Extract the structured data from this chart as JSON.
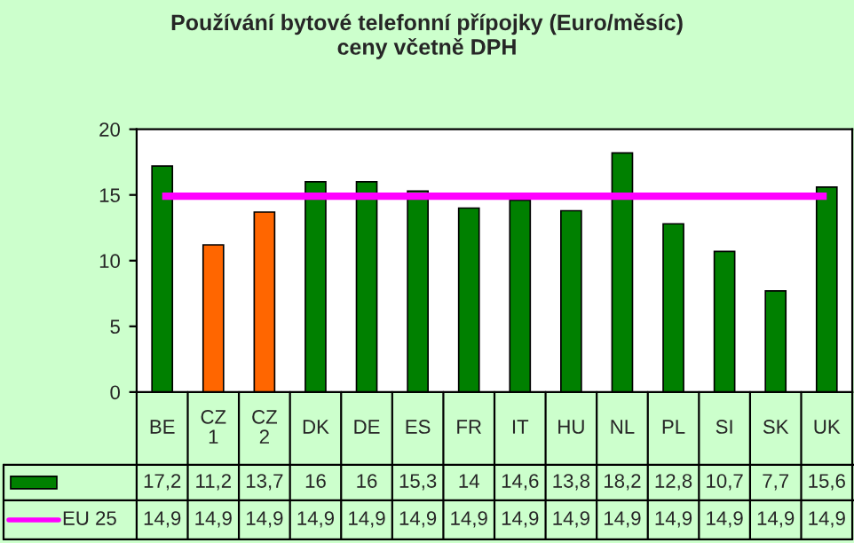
{
  "chart_data": {
    "type": "bar",
    "title": "Používání bytové telefonní přípojky (Euro/měsíc)\nceny včetně DPH",
    "categories": [
      "BE",
      "CZ 1",
      "CZ 2",
      "DK",
      "DE",
      "ES",
      "FR",
      "IT",
      "HU",
      "NL",
      "PL",
      "SI",
      "SK",
      "UK"
    ],
    "series": [
      {
        "color": "#008000",
        "colors": [
          "#008000",
          "#ff6600",
          "#ff6600",
          "#008000",
          "#008000",
          "#008000",
          "#008000",
          "#008000",
          "#008000",
          "#008000",
          "#008000",
          "#008000",
          "#008000",
          "#008000"
        ],
        "values": [
          17.2,
          11.2,
          13.7,
          16,
          16,
          15.3,
          14,
          14.6,
          13.8,
          18.2,
          12.8,
          10.7,
          7.7,
          15.6
        ],
        "value_labels": [
          "17,2",
          "11,2",
          "13,7",
          "16",
          "16",
          "15,3",
          "14",
          "14,6",
          "13,8",
          "18,2",
          "12,8",
          "10,7",
          "7,7",
          "15,6"
        ]
      },
      {
        "type": "line",
        "name": "EU 25",
        "color": "#ff00ff",
        "values": [
          14.9,
          14.9,
          14.9,
          14.9,
          14.9,
          14.9,
          14.9,
          14.9,
          14.9,
          14.9,
          14.9,
          14.9,
          14.9,
          14.9
        ],
        "value_labels": [
          "14,9",
          "14,9",
          "14,9",
          "14,9",
          "14,9",
          "14,9",
          "14,9",
          "14,9",
          "14,9",
          "14,9",
          "14,9",
          "14,9",
          "14,9",
          "14,9"
        ]
      }
    ],
    "ylim": [
      0,
      20
    ],
    "yticks": [
      0,
      5,
      10,
      15,
      20
    ],
    "grid": false,
    "legend": "bottom left"
  }
}
